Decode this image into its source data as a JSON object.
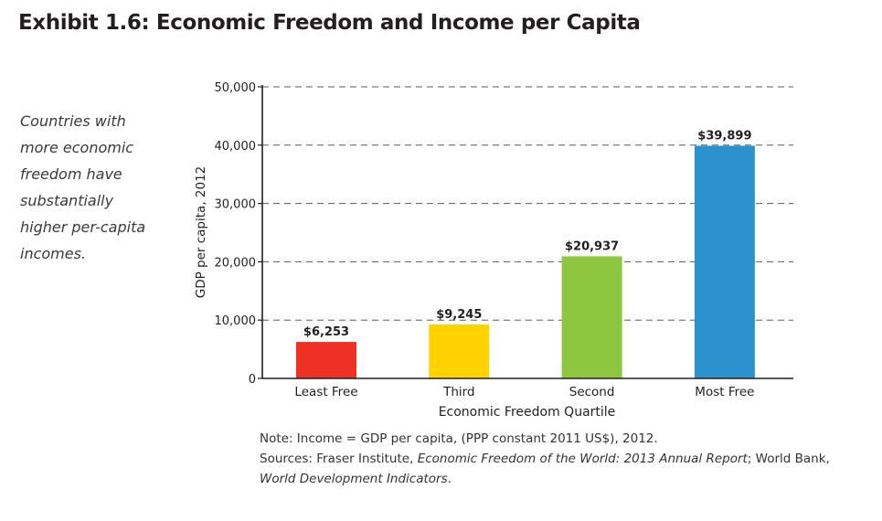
{
  "title": "Exhibit 1.6: Economic Freedom and Income per Capita",
  "sidebar_text": [
    "Countries with",
    "more economic",
    "freedom have",
    "substantially",
    "higher per-capita",
    "incomes."
  ],
  "notes": {
    "note": "Note: Income = GDP per capita, (PPP constant 2011 US$), 2012.",
    "sources_prefix": "Sources: Fraser Institute, ",
    "sources_report": "Economic Freedom of the World: 2013 Annual Report",
    "sources_middle": "; World Bank,",
    "sources_wdi": "World Development Indicators",
    "sources_end": "."
  },
  "chart_data": {
    "type": "bar",
    "categories": [
      "Least Free",
      "Third",
      "Second",
      "Most Free"
    ],
    "values": [
      6253,
      9245,
      20937,
      39899
    ],
    "data_labels": [
      "$6,253",
      "$9,245",
      "$20,937",
      "$39,899"
    ],
    "colors": [
      "#ee3124",
      "#ffd200",
      "#8dc63f",
      "#2b92cf"
    ],
    "xlabel": "Economic Freedom Quartile",
    "ylabel": "GDP per capita, 2012",
    "ylim": [
      0,
      50000
    ],
    "yticks": [
      0,
      10000,
      20000,
      30000,
      40000,
      50000
    ],
    "ytick_labels": [
      "0",
      "10,000",
      "20,000",
      "30,000",
      "40,000",
      "50,000"
    ],
    "grid": true,
    "grid_style": "dashed"
  }
}
